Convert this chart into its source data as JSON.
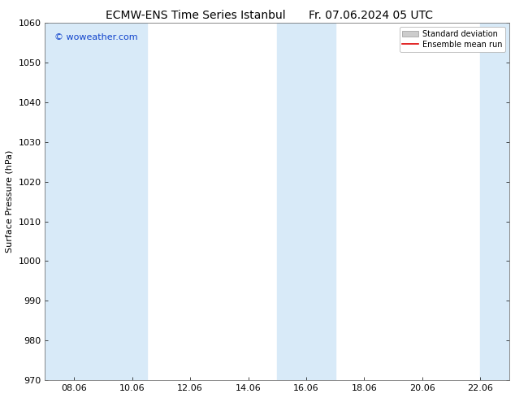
{
  "title_left": "ECMW-ENS Time Series Istanbul",
  "title_right": "Fr. 07.06.2024 05 UTC",
  "ylabel": "Surface Pressure (hPa)",
  "ylim": [
    970,
    1060
  ],
  "yticks": [
    970,
    980,
    990,
    1000,
    1010,
    1020,
    1030,
    1040,
    1050,
    1060
  ],
  "xtick_labels": [
    "08.06",
    "10.06",
    "12.06",
    "14.06",
    "16.06",
    "18.06",
    "20.06",
    "22.06"
  ],
  "xtick_days": [
    8,
    10,
    12,
    14,
    16,
    18,
    20,
    22
  ],
  "xlim_day_start": 7,
  "xlim_day_end": 23,
  "watermark": "© woweather.com",
  "watermark_color": "#1144cc",
  "background_color": "#ffffff",
  "shaded_bands": [
    {
      "start_day": 7,
      "start_hour": 0,
      "end_day": 10,
      "end_hour": 12
    },
    {
      "start_day": 15,
      "start_hour": 0,
      "end_day": 17,
      "end_hour": 0
    },
    {
      "start_day": 22,
      "start_hour": 0,
      "end_day": 23,
      "end_hour": 12
    }
  ],
  "shaded_color": "#d8eaf8",
  "legend_std_facecolor": "#cccccc",
  "legend_std_edgecolor": "#999999",
  "legend_mean_color": "#dd0000",
  "title_fontsize": 10,
  "ylabel_fontsize": 8,
  "tick_fontsize": 8,
  "watermark_fontsize": 8,
  "legend_fontsize": 7
}
